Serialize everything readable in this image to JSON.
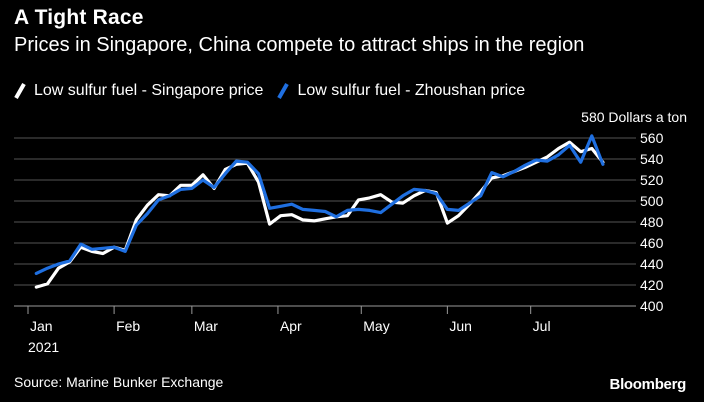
{
  "title": "A Tight Race",
  "subtitle": "Prices in Singapore, China compete to attract ships in the region",
  "source": "Source: Marine Bunker Exchange",
  "brand": "Bloomberg",
  "colors": {
    "background": "#000000",
    "grid": "#555555",
    "singapore": "#ffffff",
    "zhoushan": "#1f6fe0"
  },
  "chart_data": {
    "type": "line",
    "title": "A Tight Race",
    "subtitle": "Prices in Singapore, China compete to attract ships in the region",
    "unit_label": "580 Dollars a ton",
    "ylim": [
      400,
      580
    ],
    "y_ticks": [
      400,
      420,
      440,
      460,
      480,
      500,
      520,
      540,
      560,
      580
    ],
    "y_tick_labels": [
      "400",
      "420",
      "440",
      "460",
      "480",
      "500",
      "520",
      "540",
      "560",
      "580"
    ],
    "x_ticks": [
      "Jan",
      "Feb",
      "Mar",
      "Apr",
      "May",
      "Jun",
      "Jul"
    ],
    "x_year": "2021",
    "grid": true,
    "x": [
      "2021-01-04",
      "2021-01-08",
      "2021-01-12",
      "2021-01-16",
      "2021-01-20",
      "2021-01-24",
      "2021-01-28",
      "2021-02-01",
      "2021-02-05",
      "2021-02-09",
      "2021-02-13",
      "2021-02-17",
      "2021-02-21",
      "2021-02-25",
      "2021-03-01",
      "2021-03-05",
      "2021-03-09",
      "2021-03-13",
      "2021-03-17",
      "2021-03-21",
      "2021-03-25",
      "2021-03-29",
      "2021-04-02",
      "2021-04-06",
      "2021-04-10",
      "2021-04-14",
      "2021-04-18",
      "2021-04-22",
      "2021-04-26",
      "2021-04-30",
      "2021-05-04",
      "2021-05-08",
      "2021-05-12",
      "2021-05-16",
      "2021-05-20",
      "2021-05-24",
      "2021-05-28",
      "2021-06-01",
      "2021-06-05",
      "2021-06-09",
      "2021-06-13",
      "2021-06-17",
      "2021-06-21",
      "2021-06-25",
      "2021-06-29",
      "2021-07-03",
      "2021-07-07",
      "2021-07-11",
      "2021-07-15",
      "2021-07-19",
      "2021-07-23",
      "2021-07-27"
    ],
    "series": [
      {
        "name": "Low sulfur fuel - Singapore price",
        "color": "#ffffff",
        "values": [
          418,
          421,
          436,
          442,
          456,
          452,
          450,
          456,
          453,
          482,
          496,
          506,
          505,
          515,
          515,
          525,
          512,
          530,
          535,
          536,
          518,
          478,
          486,
          487,
          482,
          481,
          483,
          485,
          486,
          501,
          503,
          506,
          499,
          498,
          505,
          510,
          508,
          479,
          486,
          497,
          509,
          522,
          524,
          528,
          532,
          537,
          542,
          550,
          556,
          547,
          550,
          537
        ]
      },
      {
        "name": "Low sulfur fuel - Zhoushan price",
        "color": "#1f6fe0",
        "values": [
          431,
          436,
          440,
          443,
          459,
          454,
          455,
          456,
          452,
          477,
          488,
          501,
          505,
          511,
          512,
          520,
          513,
          526,
          538,
          537,
          526,
          493,
          495,
          497,
          492,
          491,
          490,
          485,
          491,
          492,
          491,
          489,
          497,
          505,
          511,
          510,
          507,
          492,
          491,
          498,
          505,
          527,
          523,
          528,
          534,
          539,
          538,
          544,
          553,
          537,
          562,
          535
        ]
      }
    ]
  }
}
